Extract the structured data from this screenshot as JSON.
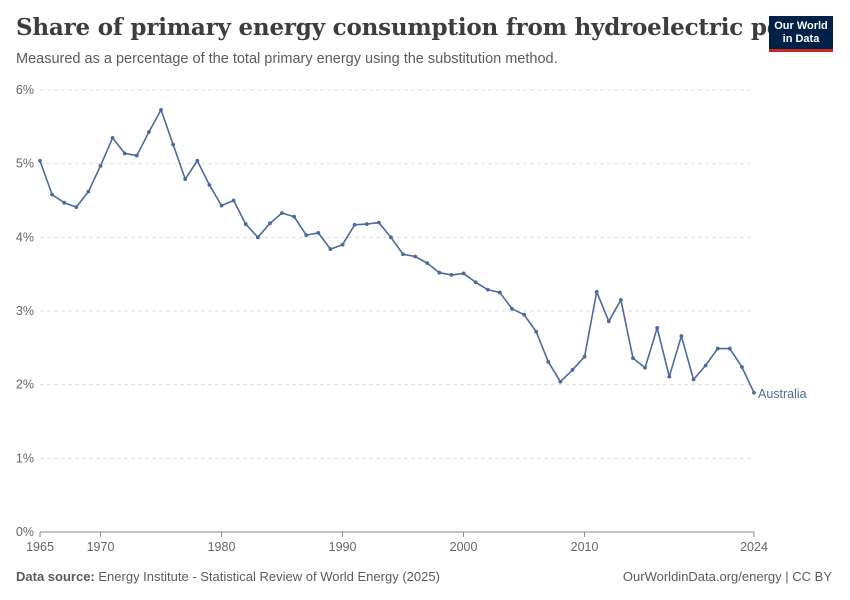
{
  "header": {
    "title": "Share of primary energy consumption from hydroelectric power",
    "subtitle": "Measured as a percentage of the total primary energy using the substitution method."
  },
  "logo": {
    "line1": "Our World",
    "line2": "in Data"
  },
  "footer": {
    "source_label": "Data source:",
    "source_text": "Energy Institute - Statistical Review of World Energy (2025)",
    "link_text": "OurWorldinData.org/energy",
    "license": " | CC BY"
  },
  "colors": {
    "series": "#4c6a9c",
    "grid": "#dddddd",
    "axis": "#666666",
    "logo_bg": "#002147",
    "logo_accent": "#ce261e"
  },
  "chart_data": {
    "type": "line",
    "title": "Share of primary energy consumption from hydroelectric power",
    "ylim": [
      0,
      6
    ],
    "xlim": [
      1965,
      2024
    ],
    "y_unit": "%",
    "yticks": [
      "0%",
      "1%",
      "2%",
      "3%",
      "4%",
      "5%",
      "6%"
    ],
    "xticks": [
      "1965",
      "1970",
      "1980",
      "1990",
      "2000",
      "2010",
      "2024"
    ],
    "grid": true,
    "series": [
      {
        "name": "Australia",
        "x": [
          1965,
          1966,
          1967,
          1968,
          1969,
          1970,
          1971,
          1972,
          1973,
          1974,
          1975,
          1976,
          1977,
          1978,
          1979,
          1980,
          1981,
          1982,
          1983,
          1984,
          1985,
          1986,
          1987,
          1988,
          1989,
          1990,
          1991,
          1992,
          1993,
          1994,
          1995,
          1996,
          1997,
          1998,
          1999,
          2000,
          2001,
          2002,
          2003,
          2004,
          2005,
          2006,
          2007,
          2008,
          2009,
          2010,
          2011,
          2012,
          2013,
          2014,
          2015,
          2016,
          2017,
          2018,
          2019,
          2020,
          2021,
          2022,
          2023,
          2024
        ],
        "values": [
          5.04,
          4.58,
          4.47,
          4.41,
          4.62,
          4.97,
          5.35,
          5.14,
          5.11,
          5.43,
          5.73,
          5.26,
          4.79,
          5.04,
          4.71,
          4.43,
          4.5,
          4.18,
          4.0,
          4.19,
          4.33,
          4.28,
          4.03,
          4.06,
          3.84,
          3.9,
          4.17,
          4.18,
          4.2,
          4.0,
          3.77,
          3.74,
          3.65,
          3.52,
          3.49,
          3.51,
          3.39,
          3.29,
          3.25,
          3.03,
          2.95,
          2.72,
          2.31,
          2.04,
          2.2,
          2.38,
          3.26,
          2.86,
          3.15,
          2.36,
          2.23,
          2.77,
          2.11,
          2.66,
          2.07,
          2.26,
          2.49,
          2.49,
          2.24,
          1.89
        ]
      }
    ]
  }
}
